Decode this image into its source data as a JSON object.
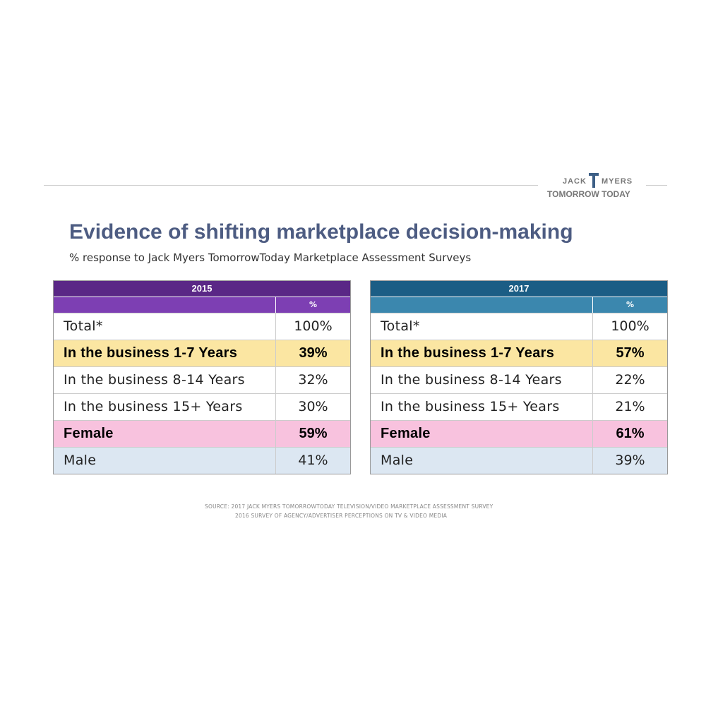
{
  "logo": {
    "top_left": "JACK",
    "top_right": "MYERS",
    "bottom": "TOMORROW TODAY"
  },
  "header": {
    "title": "Evidence of shifting marketplace decision-making",
    "subtitle": "% response to Jack Myers TomorrowToday Marketplace Assessment Surveys"
  },
  "tables": [
    {
      "year": "2015",
      "column": "%",
      "header_color": "#5a2786",
      "subheader_color": "#7d3fb3",
      "rows": [
        {
          "label": "Total*",
          "value": "100%",
          "bold": false,
          "fill": "#ffffff"
        },
        {
          "label": "In the business 1-7 Years",
          "value": "39%",
          "bold": true,
          "fill": "#fbe6a2"
        },
        {
          "label": "In the business 8-14 Years",
          "value": "32%",
          "bold": false,
          "fill": "#ffffff"
        },
        {
          "label": "In the business 15+ Years",
          "value": "30%",
          "bold": false,
          "fill": "#ffffff"
        },
        {
          "label": "Female",
          "value": "59%",
          "bold": true,
          "fill": "#f8c2de"
        },
        {
          "label": "Male",
          "value": "41%",
          "bold": false,
          "fill": "#dce7f2"
        }
      ]
    },
    {
      "year": "2017",
      "column": "%",
      "header_color": "#1b5d85",
      "subheader_color": "#3b87ae",
      "rows": [
        {
          "label": "Total*",
          "value": "100%",
          "bold": false,
          "fill": "#ffffff"
        },
        {
          "label": "In the business 1-7 Years",
          "value": "57%",
          "bold": true,
          "fill": "#fbe6a2"
        },
        {
          "label": "In the business 8-14 Years",
          "value": "22%",
          "bold": false,
          "fill": "#ffffff"
        },
        {
          "label": "In the business 15+ Years",
          "value": "21%",
          "bold": false,
          "fill": "#ffffff"
        },
        {
          "label": "Female",
          "value": "61%",
          "bold": true,
          "fill": "#f8c2de"
        },
        {
          "label": "Male",
          "value": "39%",
          "bold": false,
          "fill": "#dce7f2"
        }
      ]
    }
  ],
  "source": [
    "SOURCE:  2017 JACK MYERS TOMORROWTODAY TELEVISION/VIDEO MARKETPLACE ASSESSMENT SURVEY",
    "2016 SURVEY OF AGENCY/ADVERTISER PERCEPTIONS ON TV & VIDEO MEDIA"
  ]
}
